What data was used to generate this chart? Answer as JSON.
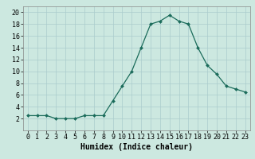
{
  "x": [
    0,
    1,
    2,
    3,
    4,
    5,
    6,
    7,
    8,
    9,
    10,
    11,
    12,
    13,
    14,
    15,
    16,
    17,
    18,
    19,
    20,
    21,
    22,
    23
  ],
  "y": [
    2.5,
    2.5,
    2.5,
    2.0,
    2.0,
    2.0,
    2.5,
    2.5,
    2.5,
    5.0,
    7.5,
    10.0,
    14.0,
    18.0,
    18.5,
    19.5,
    18.5,
    18.0,
    14.0,
    11.0,
    9.5,
    7.5,
    7.0,
    6.5
  ],
  "line_color": "#1a6b5a",
  "marker_color": "#1a6b5a",
  "bg_color": "#cce8e0",
  "grid_color": "#aacccc",
  "xlabel": "Humidex (Indice chaleur)",
  "xlabel_fontsize": 7,
  "tick_fontsize": 6,
  "xlim": [
    -0.5,
    23.5
  ],
  "ylim": [
    0,
    21
  ],
  "yticks": [
    2,
    4,
    6,
    8,
    10,
    12,
    14,
    16,
    18,
    20
  ],
  "xticks": [
    0,
    1,
    2,
    3,
    4,
    5,
    6,
    7,
    8,
    9,
    10,
    11,
    12,
    13,
    14,
    15,
    16,
    17,
    18,
    19,
    20,
    21,
    22,
    23
  ]
}
